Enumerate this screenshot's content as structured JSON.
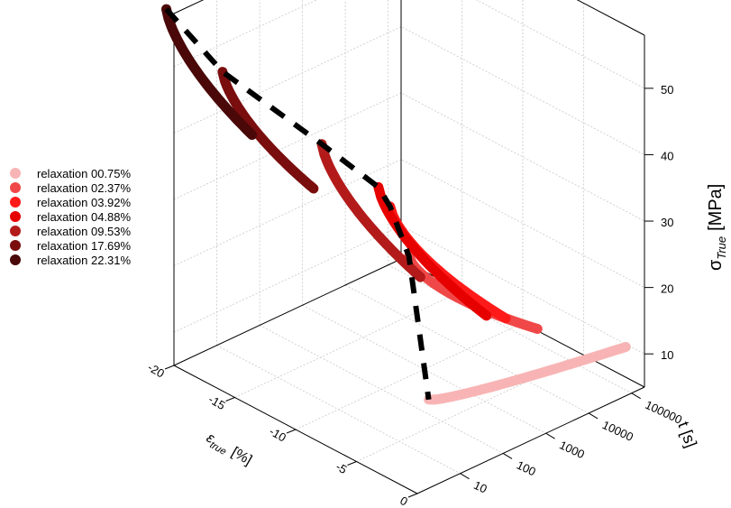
{
  "chart_data": {
    "type": "3d-line",
    "title": "",
    "grid": true,
    "legend_position": "left",
    "axes": {
      "x": {
        "label_main": "ε",
        "label_sub": "true",
        "label_unit": "[%]",
        "ticks": [
          "-20",
          "-15",
          "-10",
          "-5",
          "0"
        ],
        "range": [
          -20,
          0
        ]
      },
      "y": {
        "label": "t [s]",
        "scale": "log",
        "ticks": [
          "10",
          "100",
          "1000",
          "10000",
          "100000"
        ],
        "range": [
          1,
          200000
        ]
      },
      "z": {
        "label_main": "σ",
        "label_sub": "True",
        "label_unit": "[MPa]",
        "ticks": [
          "10",
          "20",
          "30",
          "40",
          "50"
        ],
        "range": [
          5,
          58
        ]
      }
    },
    "series": [
      {
        "name": "relaxation 00.75%",
        "color": "#f8b4b4",
        "strain": -0.75,
        "time_range": [
          3,
          120000
        ],
        "stress_range": [
          17,
          11
        ]
      },
      {
        "name": "relaxation 02.37%",
        "color": "#f04848",
        "strain": -2.37,
        "time_range": [
          3,
          3000
        ],
        "stress_range": [
          37,
          17
        ]
      },
      {
        "name": "relaxation 03.92%",
        "color": "#ff1a1a",
        "strain": -3.92,
        "time_range": [
          3,
          1500
        ],
        "stress_range": [
          43,
          18
        ]
      },
      {
        "name": "relaxation 04.88%",
        "color": "#e60000",
        "strain": -4.88,
        "time_range": [
          3,
          1000
        ],
        "stress_range": [
          45,
          18
        ]
      },
      {
        "name": "relaxation 09.53%",
        "color": "#b31b1b",
        "strain": -9.53,
        "time_range": [
          3,
          600
        ],
        "stress_range": [
          47,
          20
        ]
      },
      {
        "name": "relaxation 17.69%",
        "color": "#7a0d0d",
        "strain": -17.69,
        "time_range": [
          3,
          400
        ],
        "stress_range": [
          50,
          26
        ]
      },
      {
        "name": "relaxation 22.31%",
        "color": "#4a0808",
        "strain": -22.31,
        "time_range": [
          3,
          300
        ],
        "stress_range": [
          55,
          30
        ]
      }
    ]
  }
}
